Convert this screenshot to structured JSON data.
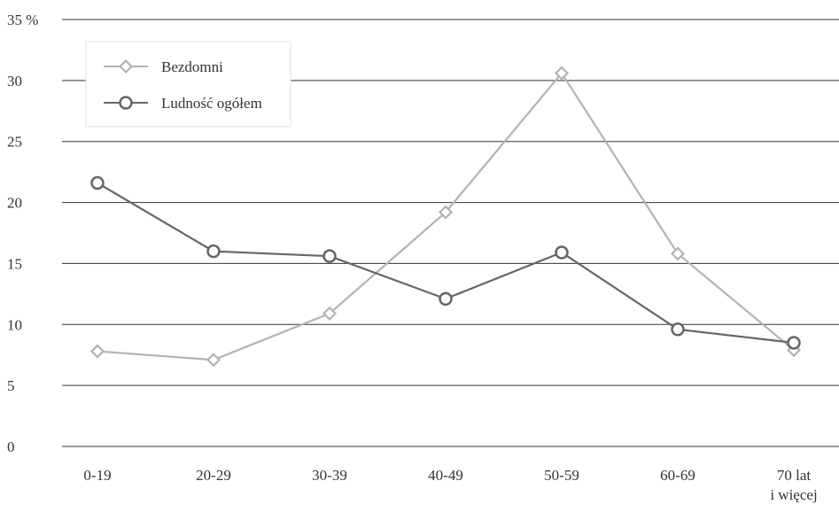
{
  "chart_data": {
    "type": "line",
    "categories": [
      "0-19",
      "20-29",
      "30-39",
      "40-49",
      "50-59",
      "60-69",
      "70 lat\ni więcej"
    ],
    "series": [
      {
        "name": "Bezdomni",
        "values": [
          7.8,
          7.1,
          10.9,
          19.2,
          30.6,
          15.8,
          7.9
        ],
        "color": "#b3b3b3",
        "marker": "diamond"
      },
      {
        "name": "Ludność ogółem",
        "values": [
          21.6,
          16.0,
          15.6,
          12.1,
          15.9,
          9.6,
          8.5
        ],
        "color": "#666666",
        "marker": "circle"
      }
    ],
    "yticks": [
      "0",
      "5",
      "10",
      "15",
      "20",
      "25",
      "30",
      "35 %"
    ],
    "ylim": [
      0,
      35
    ],
    "grid": true,
    "legend_position": "top-left"
  }
}
